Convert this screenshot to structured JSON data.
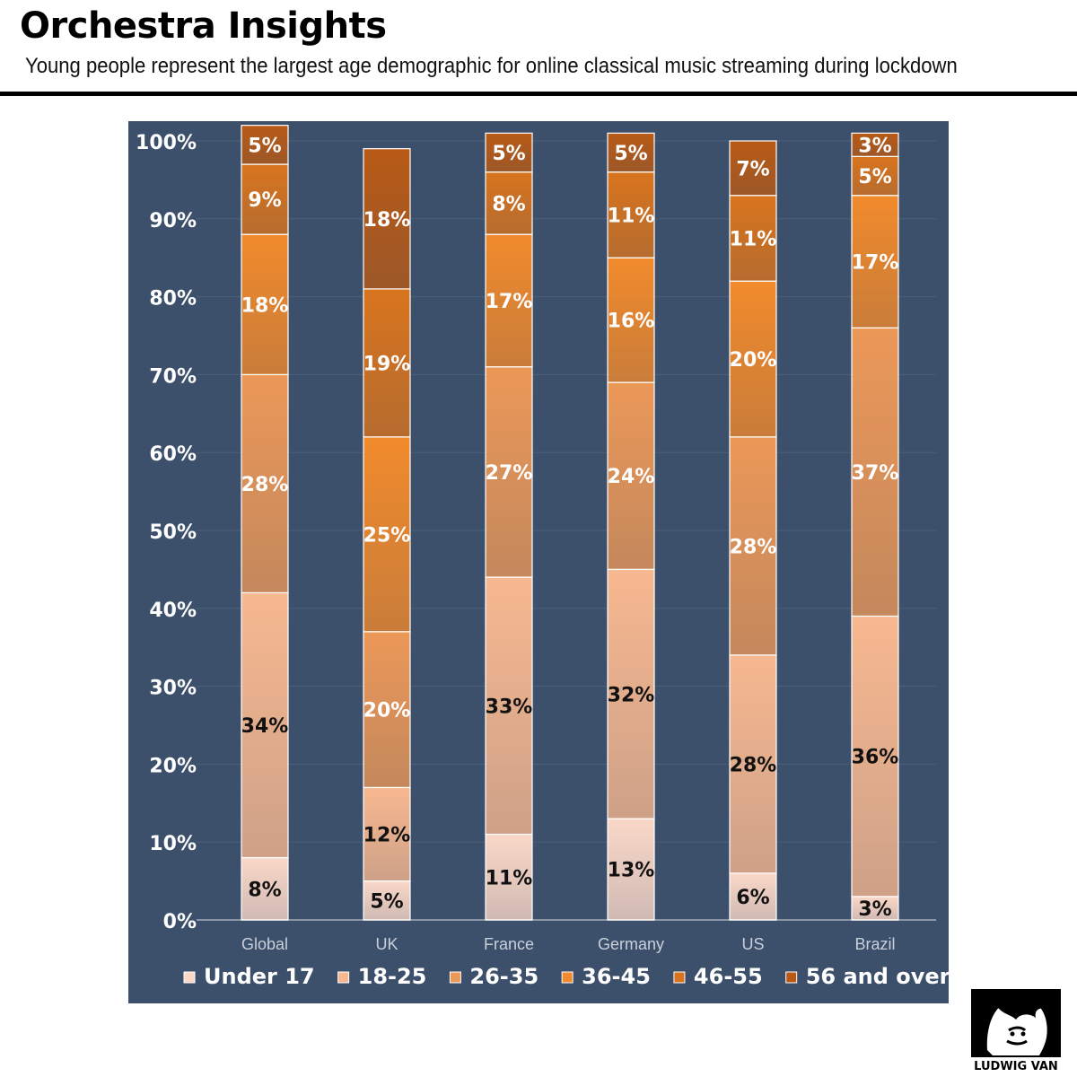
{
  "header": {
    "title": "Orchestra Insights",
    "subtitle": "Young people represent the largest age demographic for online classical music streaming during lockdown"
  },
  "colors": {
    "background": "#3c4f6b",
    "segments": [
      "#fad8c8",
      "#f7b890",
      "#eb9858",
      "#f18a2c",
      "#d8741e",
      "#b85a16"
    ]
  },
  "chart_data": {
    "type": "bar",
    "stacked": true,
    "categories": [
      "Global",
      "UK",
      "France",
      "Germany",
      "US",
      "Brazil"
    ],
    "ylim": [
      0,
      100
    ],
    "yticks": [
      "0%",
      "10%",
      "20%",
      "30%",
      "40%",
      "50%",
      "60%",
      "70%",
      "80%",
      "90%",
      "100%"
    ],
    "grid": true,
    "legend_position": "bottom",
    "series": [
      {
        "name": "Under 17",
        "values": [
          8,
          5,
          11,
          13,
          6,
          3
        ],
        "labels": [
          "8%",
          "5%",
          "11%",
          "13%",
          "6%",
          "3%"
        ]
      },
      {
        "name": "18-25",
        "values": [
          34,
          12,
          33,
          32,
          28,
          36
        ],
        "labels": [
          "34%",
          "12%",
          "33%",
          "32%",
          "28%",
          "36%"
        ]
      },
      {
        "name": "26-35",
        "values": [
          28,
          20,
          27,
          24,
          28,
          37
        ],
        "labels": [
          "28%",
          "20%",
          "27%",
          "24%",
          "28%",
          "37%"
        ]
      },
      {
        "name": "36-45",
        "values": [
          18,
          25,
          17,
          16,
          20,
          17
        ],
        "labels": [
          "18%",
          "25%",
          "17%",
          "16%",
          "20%",
          "17%"
        ]
      },
      {
        "name": "46-55",
        "values": [
          9,
          19,
          8,
          11,
          11,
          5
        ],
        "labels": [
          "9%",
          "19%",
          "8%",
          "11%",
          "11%",
          "5%"
        ]
      },
      {
        "name": "56 and over",
        "values": [
          5,
          18,
          5,
          5,
          7,
          3
        ],
        "labels": [
          "5%",
          "18%",
          "5%",
          "5%",
          "7%",
          "3%"
        ]
      }
    ]
  },
  "logo": {
    "text": "LUDWIG VAN"
  }
}
